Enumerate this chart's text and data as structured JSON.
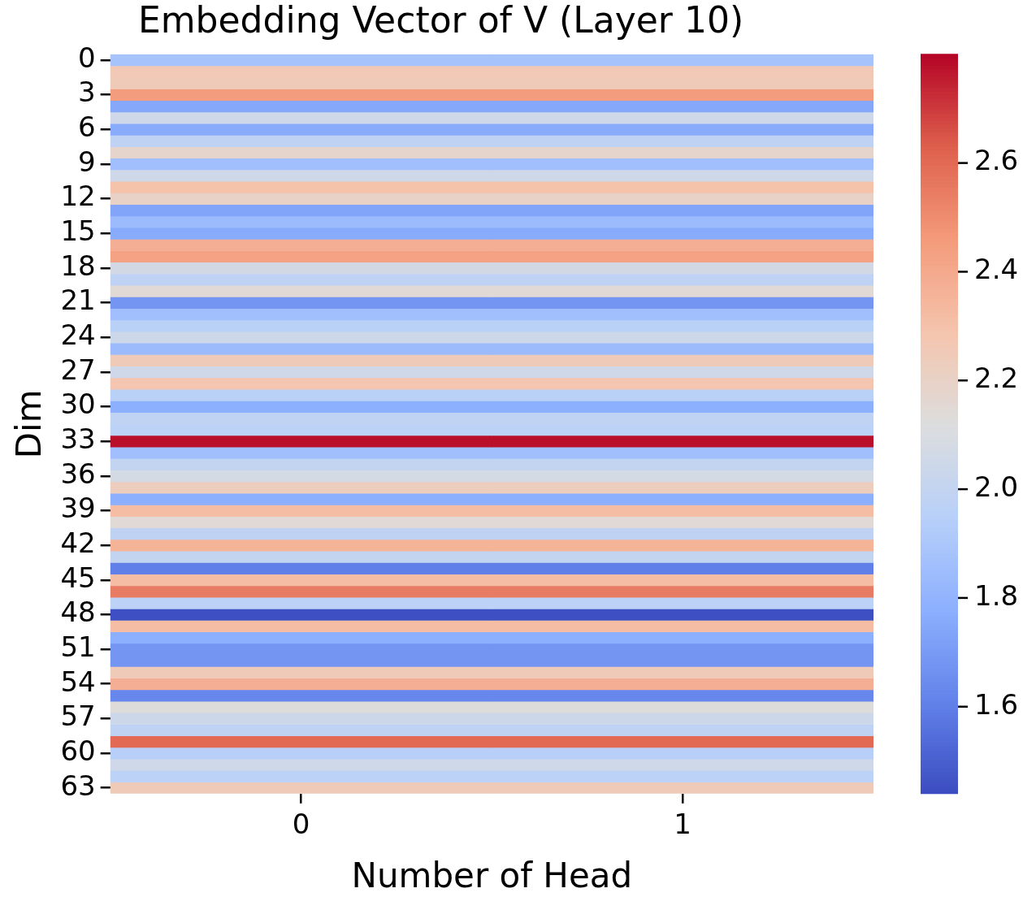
{
  "chart_data": {
    "type": "heatmap",
    "title": "Embedding Vector of V (Layer 10)",
    "xlabel": "Number of Head",
    "ylabel": "Dim",
    "categories": [
      "0",
      "1"
    ],
    "y_categories": [
      "0",
      null,
      null,
      "3",
      null,
      null,
      "6",
      null,
      null,
      "9",
      null,
      null,
      "12",
      null,
      null,
      "15",
      null,
      null,
      "18",
      null,
      null,
      "21",
      null,
      null,
      "24",
      null,
      null,
      "27",
      null,
      null,
      "30",
      null,
      null,
      "33",
      null,
      null,
      "36",
      null,
      null,
      "39",
      null,
      null,
      "42",
      null,
      null,
      "45",
      null,
      null,
      "48",
      null,
      null,
      "51",
      null,
      null,
      "54",
      null,
      null,
      "57",
      null,
      null,
      "60",
      null,
      null,
      "63"
    ],
    "cells": [
      [
        1.88,
        1.88
      ],
      [
        2.26,
        2.26
      ],
      [
        2.25,
        2.25
      ],
      [
        2.45,
        2.45
      ],
      [
        1.75,
        1.75
      ],
      [
        2.05,
        2.05
      ],
      [
        1.76,
        1.76
      ],
      [
        1.98,
        1.98
      ],
      [
        2.18,
        2.18
      ],
      [
        1.86,
        1.86
      ],
      [
        2.05,
        2.05
      ],
      [
        2.3,
        2.3
      ],
      [
        2.2,
        2.2
      ],
      [
        1.74,
        1.74
      ],
      [
        1.84,
        1.84
      ],
      [
        1.76,
        1.76
      ],
      [
        2.38,
        2.38
      ],
      [
        2.43,
        2.43
      ],
      [
        2.07,
        2.07
      ],
      [
        1.98,
        1.98
      ],
      [
        2.15,
        2.15
      ],
      [
        1.68,
        1.68
      ],
      [
        1.86,
        1.86
      ],
      [
        1.96,
        1.96
      ],
      [
        2.04,
        2.04
      ],
      [
        1.84,
        1.84
      ],
      [
        2.25,
        2.25
      ],
      [
        2.05,
        2.05
      ],
      [
        2.28,
        2.28
      ],
      [
        1.96,
        1.96
      ],
      [
        1.78,
        1.78
      ],
      [
        1.99,
        1.99
      ],
      [
        1.97,
        1.97
      ],
      [
        2.78,
        2.78
      ],
      [
        1.86,
        1.86
      ],
      [
        2.0,
        2.0
      ],
      [
        2.08,
        2.08
      ],
      [
        2.23,
        2.23
      ],
      [
        1.78,
        1.78
      ],
      [
        2.32,
        2.32
      ],
      [
        2.15,
        2.15
      ],
      [
        1.98,
        1.98
      ],
      [
        2.36,
        2.36
      ],
      [
        2.0,
        2.0
      ],
      [
        1.6,
        1.6
      ],
      [
        2.32,
        2.32
      ],
      [
        2.55,
        2.55
      ],
      [
        1.97,
        1.97
      ],
      [
        1.45,
        1.45
      ],
      [
        2.32,
        2.32
      ],
      [
        1.78,
        1.78
      ],
      [
        1.68,
        1.68
      ],
      [
        1.68,
        1.68
      ],
      [
        2.25,
        2.25
      ],
      [
        2.38,
        2.38
      ],
      [
        1.63,
        1.63
      ],
      [
        2.13,
        2.13
      ],
      [
        2.04,
        2.04
      ],
      [
        1.98,
        1.98
      ],
      [
        2.6,
        2.6
      ],
      [
        1.95,
        1.95
      ],
      [
        2.05,
        2.05
      ],
      [
        1.97,
        1.97
      ],
      [
        2.25,
        2.25
      ]
    ],
    "clim": [
      1.44,
      2.8
    ],
    "cticks": [
      1.6,
      1.8,
      {
        "value": 2,
        "label": "2.0"
      },
      2.2,
      2.4,
      2.6
    ]
  }
}
